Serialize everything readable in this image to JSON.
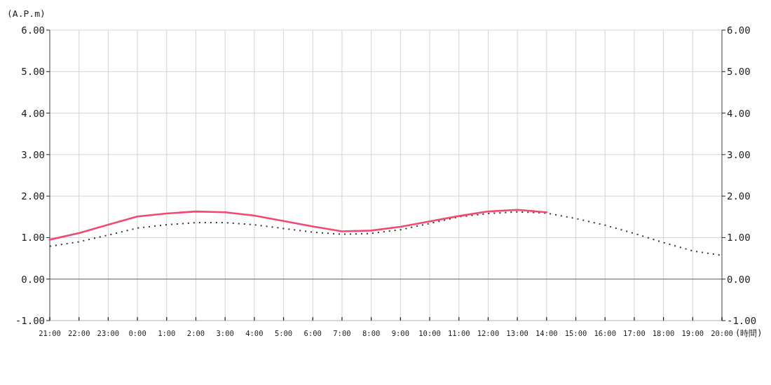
{
  "chart_data": {
    "type": "line",
    "ylabel": "(A.P.m)",
    "xlabel": "(時間)",
    "categories": [
      "21:00",
      "22:00",
      "23:00",
      "0:00",
      "1:00",
      "2:00",
      "3:00",
      "4:00",
      "5:00",
      "6:00",
      "7:00",
      "8:00",
      "9:00",
      "10:00",
      "11:00",
      "12:00",
      "13:00",
      "14:00",
      "15:00",
      "16:00",
      "17:00",
      "18:00",
      "19:00",
      "20:00"
    ],
    "series": [
      {
        "color": "#f04a72",
        "line_style": "solid",
        "values": [
          0.95,
          1.11,
          1.31,
          1.51,
          1.58,
          1.63,
          1.61,
          1.53,
          1.4,
          1.27,
          1.15,
          1.17,
          1.26,
          1.39,
          1.52,
          1.63,
          1.67,
          1.61,
          null,
          null,
          null,
          null,
          null,
          null
        ]
      },
      {
        "color": "#333333",
        "line_style": "dotted",
        "values": [
          0.79,
          0.9,
          1.06,
          1.23,
          1.31,
          1.36,
          1.36,
          1.31,
          1.22,
          1.13,
          1.08,
          1.1,
          1.19,
          1.34,
          1.5,
          1.58,
          1.62,
          1.59,
          1.46,
          1.3,
          1.1,
          0.88,
          0.68,
          0.57
        ]
      }
    ],
    "ylim": [
      -1,
      6
    ],
    "yticks": [
      {
        "value": -1,
        "label": "-1.00"
      },
      {
        "value": 0,
        "label": "0.00"
      },
      {
        "value": 1,
        "label": "1.00"
      },
      {
        "value": 2,
        "label": "2.00"
      },
      {
        "value": 3,
        "label": "3.00"
      },
      {
        "value": 4,
        "label": "4.00"
      },
      {
        "value": 5,
        "label": "5.00"
      },
      {
        "value": 6,
        "label": "6.00"
      }
    ],
    "y2lim": [
      -1,
      6
    ],
    "y2ticks": [
      {
        "value": -1,
        "label": "-1.00"
      },
      {
        "value": 0,
        "label": "0.00"
      },
      {
        "value": 1,
        "label": "1.00"
      },
      {
        "value": 2,
        "label": "2.00"
      },
      {
        "value": 3,
        "label": "3.00"
      },
      {
        "value": 4,
        "label": "4.00"
      },
      {
        "value": 5,
        "label": "5.00"
      },
      {
        "value": 6,
        "label": "6.00"
      }
    ],
    "ref_lines": [
      {
        "axis": "y",
        "value": 0,
        "color": "#666666"
      }
    ],
    "grid": true
  }
}
